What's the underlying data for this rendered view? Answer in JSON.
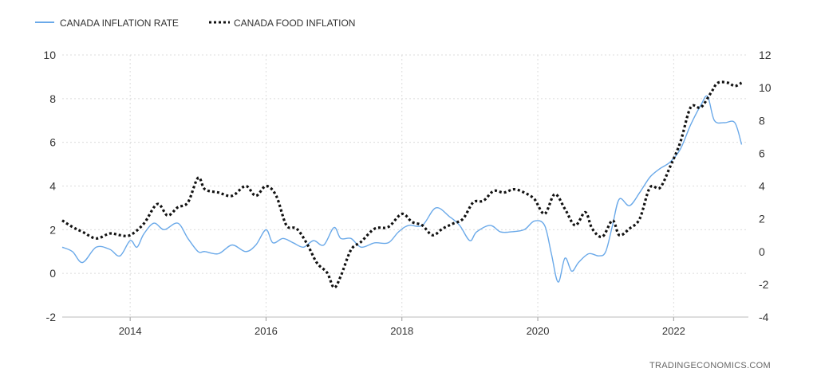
{
  "chart_data": {
    "type": "line",
    "title": "",
    "legend": {
      "placement": "top-left",
      "entries": [
        "CANADA INFLATION RATE",
        "CANADA FOOD INFLATION"
      ]
    },
    "x_ticks": [
      "2014",
      "2016",
      "2018",
      "2020",
      "2022"
    ],
    "xlim": [
      2013.0,
      2023.1
    ],
    "y_left": {
      "ticks": [
        10,
        8,
        6,
        4,
        2,
        0,
        -2
      ],
      "lim": [
        -2,
        10
      ]
    },
    "y_right": {
      "ticks": [
        12,
        10,
        8,
        6,
        4,
        2,
        0,
        -2,
        -4
      ],
      "lim": [
        -4,
        12
      ]
    },
    "grid": true,
    "series": [
      {
        "name": "CANADA INFLATION RATE",
        "axis": "left",
        "color": "#6aa9e9",
        "style": "solid",
        "x": [
          2013.0,
          2013.15,
          2013.3,
          2013.5,
          2013.7,
          2013.85,
          2014.0,
          2014.1,
          2014.2,
          2014.35,
          2014.5,
          2014.7,
          2014.85,
          2015.0,
          2015.1,
          2015.3,
          2015.5,
          2015.7,
          2015.85,
          2016.0,
          2016.1,
          2016.25,
          2016.4,
          2016.55,
          2016.7,
          2016.85,
          2017.0,
          2017.1,
          2017.25,
          2017.4,
          2017.6,
          2017.8,
          2017.95,
          2018.1,
          2018.3,
          2018.5,
          2018.7,
          2018.85,
          2019.0,
          2019.1,
          2019.3,
          2019.45,
          2019.6,
          2019.8,
          2019.95,
          2020.1,
          2020.2,
          2020.3,
          2020.4,
          2020.5,
          2020.6,
          2020.75,
          2020.9,
          2021.0,
          2021.1,
          2021.2,
          2021.35,
          2021.5,
          2021.65,
          2021.8,
          2021.95,
          2022.1,
          2022.25,
          2022.4,
          2022.5,
          2022.6,
          2022.75,
          2022.9,
          2023.0
        ],
        "y": [
          1.2,
          1.0,
          0.5,
          1.2,
          1.1,
          0.8,
          1.5,
          1.2,
          1.8,
          2.3,
          2.0,
          2.3,
          1.6,
          1.0,
          1.0,
          0.9,
          1.3,
          1.0,
          1.3,
          2.0,
          1.4,
          1.6,
          1.4,
          1.2,
          1.5,
          1.3,
          2.1,
          1.6,
          1.6,
          1.2,
          1.4,
          1.4,
          1.9,
          2.2,
          2.2,
          3.0,
          2.6,
          2.2,
          1.5,
          1.9,
          2.2,
          1.9,
          1.9,
          2.0,
          2.4,
          2.2,
          0.9,
          -0.4,
          0.7,
          0.1,
          0.5,
          0.9,
          0.8,
          1.0,
          2.2,
          3.4,
          3.1,
          3.7,
          4.4,
          4.8,
          5.1,
          5.7,
          6.8,
          7.7,
          8.1,
          7.0,
          6.9,
          6.9,
          5.9
        ]
      },
      {
        "name": "CANADA FOOD INFLATION",
        "axis": "right",
        "color": "#111111",
        "style": "dotted",
        "x": [
          2013.0,
          2013.15,
          2013.3,
          2013.5,
          2013.7,
          2013.85,
          2014.0,
          2014.2,
          2014.4,
          2014.55,
          2014.7,
          2014.85,
          2015.0,
          2015.1,
          2015.3,
          2015.5,
          2015.7,
          2015.85,
          2016.0,
          2016.15,
          2016.3,
          2016.45,
          2016.6,
          2016.75,
          2016.9,
          2017.0,
          2017.1,
          2017.25,
          2017.4,
          2017.6,
          2017.8,
          2018.0,
          2018.15,
          2018.3,
          2018.45,
          2018.6,
          2018.75,
          2018.9,
          2019.05,
          2019.2,
          2019.35,
          2019.5,
          2019.65,
          2019.8,
          2019.95,
          2020.1,
          2020.25,
          2020.4,
          2020.55,
          2020.7,
          2020.8,
          2020.95,
          2021.1,
          2021.2,
          2021.35,
          2021.5,
          2021.65,
          2021.8,
          2021.95,
          2022.1,
          2022.25,
          2022.4,
          2022.55,
          2022.65,
          2022.8,
          2022.9,
          2023.0
        ],
        "y": [
          1.9,
          1.5,
          1.2,
          0.8,
          1.1,
          1.0,
          1.0,
          1.7,
          2.9,
          2.2,
          2.7,
          3.0,
          4.5,
          3.8,
          3.6,
          3.4,
          4.0,
          3.4,
          4.0,
          3.4,
          1.6,
          1.4,
          0.5,
          -0.7,
          -1.3,
          -2.2,
          -1.5,
          0.1,
          0.6,
          1.4,
          1.5,
          2.3,
          1.8,
          1.6,
          1.0,
          1.4,
          1.7,
          2.0,
          3.0,
          3.1,
          3.7,
          3.6,
          3.8,
          3.6,
          3.2,
          2.3,
          3.5,
          2.6,
          1.6,
          2.4,
          1.4,
          0.9,
          1.9,
          1.0,
          1.4,
          2.0,
          3.9,
          3.9,
          5.2,
          6.7,
          8.8,
          8.8,
          9.7,
          10.3,
          10.3,
          10.1,
          10.3
        ]
      }
    ],
    "source": "TRADINGECONOMICS.COM"
  }
}
